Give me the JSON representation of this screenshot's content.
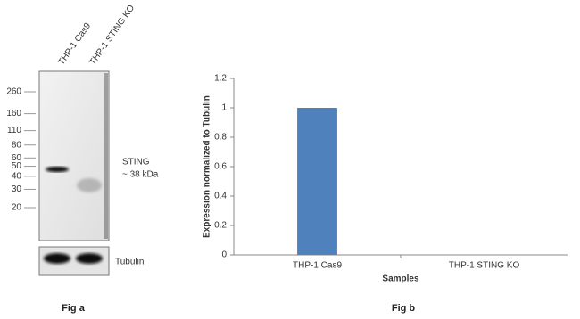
{
  "blot": {
    "lanes": [
      "THP-1 Cas9",
      "THP-1 STING KO"
    ],
    "markers": [
      260,
      160,
      110,
      80,
      60,
      50,
      40,
      30,
      20
    ],
    "band_label": "STING",
    "band_size": "~ 38 kDa",
    "loading_label": "Tubulin",
    "caption": "Fig a"
  },
  "chart_data": {
    "type": "bar",
    "categories": [
      "THP-1 Cas9",
      "THP-1 STING KO"
    ],
    "values": [
      1,
      0
    ],
    "color": "#4f81bd",
    "ylim": [
      0,
      1.2
    ],
    "yticks": [
      0,
      0.2,
      0.4,
      0.6,
      0.8,
      1,
      1.2
    ],
    "y_label": "Expression  normalized to Tubulin",
    "x_label": "Samples",
    "caption": "Fig b"
  }
}
